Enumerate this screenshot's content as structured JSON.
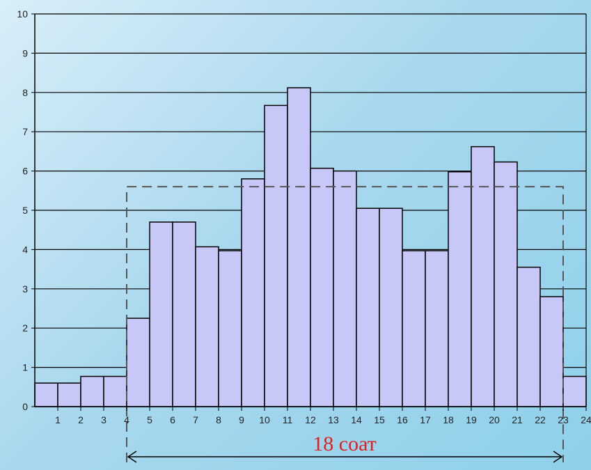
{
  "chart_data": {
    "type": "bar",
    "title": "",
    "xlabel": "",
    "ylabel": "",
    "ylim": [
      0,
      10
    ],
    "xlim": [
      0,
      24
    ],
    "y_ticks": [
      "0",
      "1",
      "2",
      "3",
      "4",
      "5",
      "6",
      "7",
      "8",
      "9",
      "10"
    ],
    "x_ticks": [
      "1",
      "2",
      "3",
      "4",
      "5",
      "6",
      "7",
      "8",
      "9",
      "10",
      "11",
      "12",
      "13",
      "14",
      "15",
      "16",
      "17",
      "18",
      "19",
      "20",
      "21",
      "22",
      "23",
      "24"
    ],
    "categories": [
      "0-1",
      "1-2",
      "2-3",
      "3-4",
      "4-5",
      "5-6",
      "6-7",
      "7-8",
      "8-9",
      "9-10",
      "10-11",
      "11-12",
      "12-13",
      "13-14",
      "14-15",
      "15-16",
      "16-17",
      "17-18",
      "18-19",
      "19-20",
      "20-21",
      "21-22",
      "22-23",
      "23-24"
    ],
    "values": [
      0.6,
      0.6,
      0.77,
      0.77,
      2.25,
      4.7,
      4.7,
      4.07,
      3.97,
      5.8,
      7.67,
      8.12,
      6.07,
      6.0,
      5.05,
      5.05,
      3.97,
      3.97,
      5.98,
      6.62,
      6.23,
      3.55,
      2.8,
      0.77
    ],
    "average_level": 5.6,
    "average_span": [
      4,
      23
    ],
    "annotation": "18 соат",
    "grid": true,
    "colors": {
      "bar_fill": "#c8c8f8",
      "bar_stroke": "#000000",
      "grid": "#000000",
      "annotation": "#e02020",
      "dashed": "#555555"
    }
  }
}
